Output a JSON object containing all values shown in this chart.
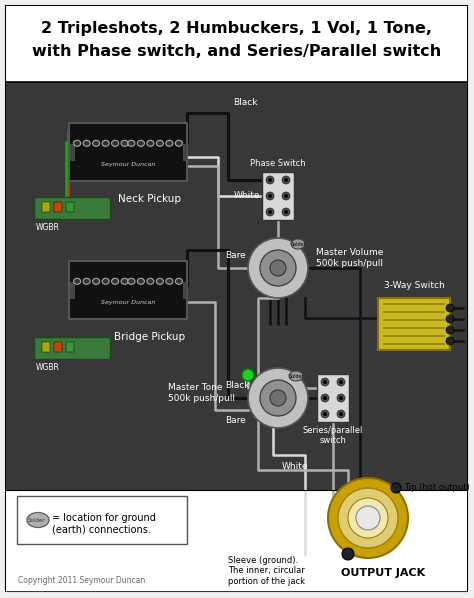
{
  "title_line1": "2 Tripleshots, 2 Humbuckers, 1 Vol, 1 Tone,",
  "title_line2": "with Phase switch, and Series/Parallel switch",
  "title_fontsize": 11.5,
  "bg_color": "#f0f0f0",
  "border_color": "#000000",
  "copyright": "Copyright 2011 Seymour Duncan",
  "legend_text": "= location for ground\n(earth) connections.",
  "legend_solder_label": "Solder",
  "output_jack_label": "OUTPUT JACK",
  "tip_label": "Tip (hot output)",
  "sleeve_label": "Sleeve (ground).\nThe inner, circular\nportion of the jack",
  "neck_pickup_label": "Neck Pickup",
  "bridge_pickup_label": "Bridge Pickup",
  "phase_switch_label": "Phase Switch",
  "master_volume_label": "Master Volume\n500k push/pull",
  "master_tone_label": "Master Tone\n500k push/pull",
  "series_parallel_label": "Series/parallel\nswitch",
  "three_way_label": "3-Way Switch",
  "black_label": "Black",
  "white_label1": "White",
  "white_label2": "White",
  "bare_label1": "Bare",
  "bare_label2": "Bare",
  "black_label2": "Black",
  "wgbr_label": "WGBR",
  "pickup_body_color": "#111111",
  "pickup_pole_color": "#aaaaaa",
  "wire_black": "#111111",
  "wire_white": "#dddddd",
  "wire_green": "#00bb00",
  "wire_bare": "#b8a060",
  "tripleshot_color": "#3a7a3a",
  "solder_color": "#999999",
  "three_way_body": "#ccb820",
  "pot_outer": "#c0c0c0",
  "pot_inner": "#909090",
  "jack_outer": "#c8a000",
  "jack_mid": "#e0cc70",
  "jack_light": "#f0e8b0",
  "jack_hole": "#e8e8e8",
  "green_dot_color": "#22cc22",
  "dark_bg": "#383838"
}
